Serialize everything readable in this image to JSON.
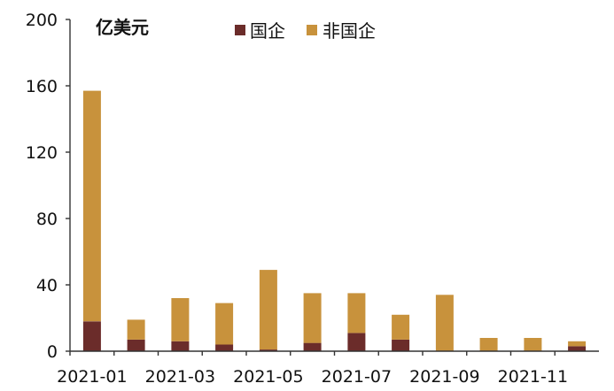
{
  "chart_data": {
    "type": "bar",
    "stacked": true,
    "unit_label": "亿美元",
    "categories": [
      "2021-01",
      "2021-02",
      "2021-03",
      "2021-04",
      "2021-05",
      "2021-06",
      "2021-07",
      "2021-08",
      "2021-09",
      "2021-10",
      "2021-11",
      "2021-12"
    ],
    "x_tick_labels": [
      "2021-01",
      "2021-03",
      "2021-05",
      "2021-07",
      "2021-09",
      "2021-11"
    ],
    "y_ticks": [
      0,
      40,
      80,
      120,
      160,
      200
    ],
    "ylim": [
      0,
      200
    ],
    "legend_position": "top",
    "grid": false,
    "series": [
      {
        "name": "国企",
        "color": "#6B2C2A",
        "values": [
          18,
          7,
          6,
          4,
          1,
          5,
          11,
          7,
          0,
          0,
          0,
          3
        ]
      },
      {
        "name": "非国企",
        "color": "#C8923C",
        "values": [
          139,
          12,
          26,
          25,
          48,
          30,
          24,
          15,
          34,
          8,
          8,
          3
        ]
      }
    ]
  }
}
